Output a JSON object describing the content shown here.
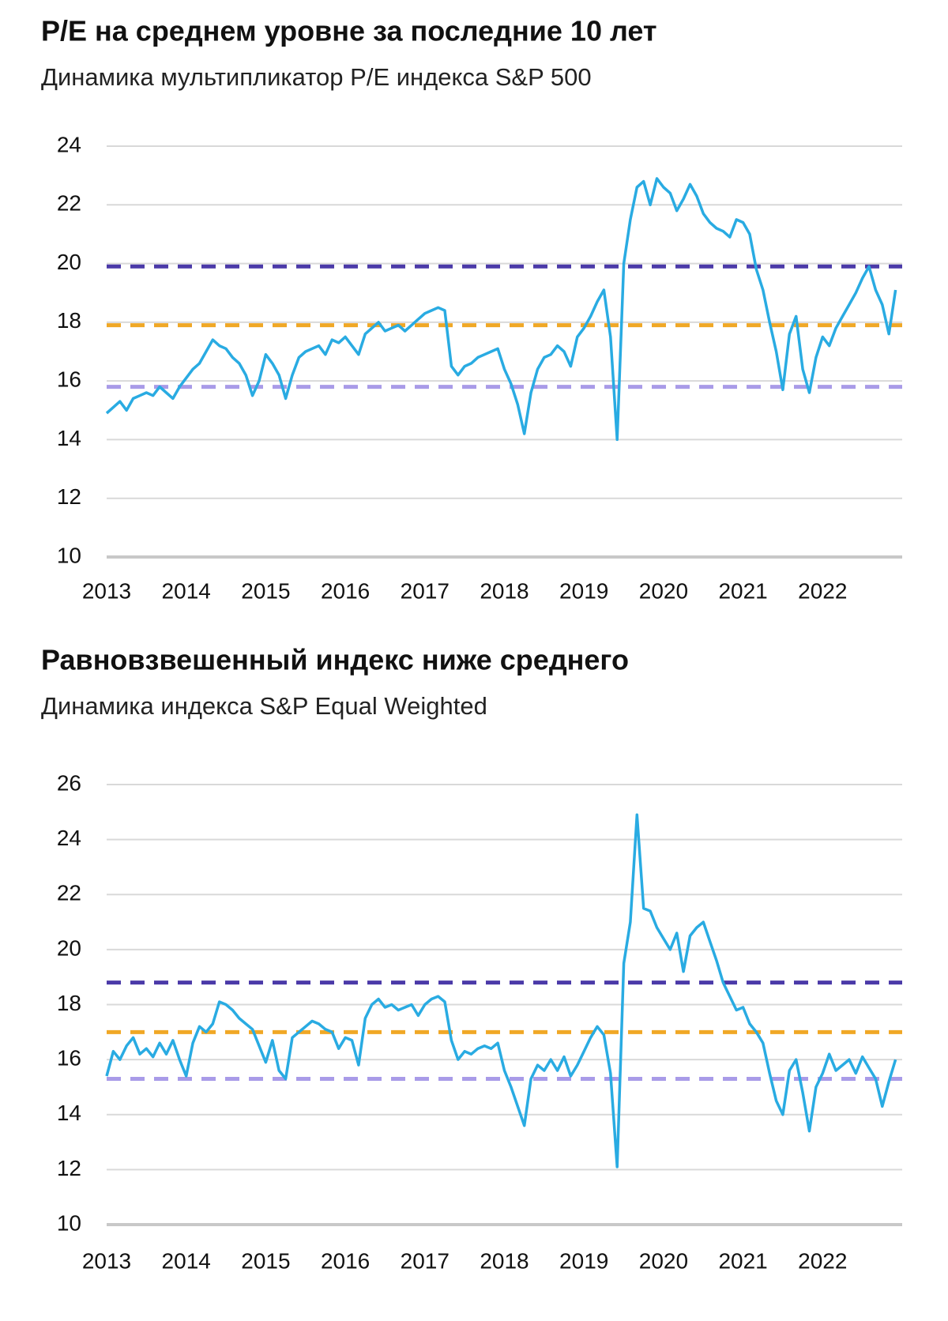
{
  "chart_data": [
    {
      "type": "line",
      "title": "P/E на среднем уровне за последние 10 лет",
      "subtitle": "Динамика мультипликатор P/E индекса S&P 500",
      "xlim": [
        2013,
        2023
      ],
      "xticks": [
        2013,
        2014,
        2015,
        2016,
        2017,
        2018,
        2019,
        2020,
        2021,
        2022
      ],
      "ylim": [
        10,
        24
      ],
      "yticks": [
        10,
        12,
        14,
        16,
        18,
        20,
        22,
        24
      ],
      "grid": true,
      "series": [
        {
          "color": "#29abe2",
          "values": [
            14.9,
            15.1,
            15.3,
            15.0,
            15.4,
            15.5,
            15.6,
            15.5,
            15.8,
            15.6,
            15.4,
            15.8,
            16.1,
            16.4,
            16.6,
            17.0,
            17.4,
            17.2,
            17.1,
            16.8,
            16.6,
            16.2,
            15.5,
            16.0,
            16.9,
            16.6,
            16.2,
            15.4,
            16.2,
            16.8,
            17.0,
            17.1,
            17.2,
            16.9,
            17.4,
            17.3,
            17.5,
            17.2,
            16.9,
            17.6,
            17.8,
            18.0,
            17.7,
            17.8,
            17.9,
            17.7,
            17.9,
            18.1,
            18.3,
            18.4,
            18.5,
            18.4,
            16.5,
            16.2,
            16.5,
            16.6,
            16.8,
            16.9,
            17.0,
            17.1,
            16.4,
            15.9,
            15.2,
            14.2,
            15.6,
            16.4,
            16.8,
            16.9,
            17.2,
            17.0,
            16.5,
            17.5,
            17.8,
            18.2,
            18.7,
            19.1,
            17.5,
            14.0,
            20.0,
            21.5,
            22.6,
            22.8,
            22.0,
            22.9,
            22.6,
            22.4,
            21.8,
            22.2,
            22.7,
            22.3,
            21.7,
            21.4,
            21.2,
            21.1,
            20.9,
            21.5,
            21.4,
            21.0,
            19.8,
            19.1,
            18.0,
            17.0,
            15.7,
            17.6,
            18.2,
            16.4,
            15.6,
            16.8,
            17.5,
            17.2,
            17.8,
            18.2,
            18.6,
            19.0,
            19.5,
            19.9,
            19.1,
            18.6,
            17.6,
            19.1
          ]
        }
      ],
      "reference_lines": [
        {
          "value": 19.9,
          "color": "#4b3aa8",
          "style": "dashed"
        },
        {
          "value": 17.9,
          "color": "#f0a826",
          "style": "dashed"
        },
        {
          "value": 15.8,
          "color": "#a99be8",
          "style": "dashed"
        }
      ]
    },
    {
      "type": "line",
      "title": "Равновзвешенный индекс ниже среднего",
      "subtitle": "Динамика индекса S&P Equal Weighted",
      "xlim": [
        2013,
        2023
      ],
      "xticks": [
        2013,
        2014,
        2015,
        2016,
        2017,
        2018,
        2019,
        2020,
        2021,
        2022
      ],
      "ylim": [
        10,
        26
      ],
      "yticks": [
        10,
        12,
        14,
        16,
        18,
        20,
        22,
        24,
        26
      ],
      "grid": true,
      "series": [
        {
          "color": "#29abe2",
          "values": [
            15.4,
            16.3,
            16.0,
            16.5,
            16.8,
            16.2,
            16.4,
            16.1,
            16.6,
            16.2,
            16.7,
            16.0,
            15.4,
            16.6,
            17.2,
            17.0,
            17.3,
            18.1,
            18.0,
            17.8,
            17.5,
            17.3,
            17.1,
            16.5,
            15.9,
            16.7,
            15.6,
            15.3,
            16.8,
            17.0,
            17.2,
            17.4,
            17.3,
            17.1,
            17.0,
            16.4,
            16.8,
            16.7,
            15.8,
            17.5,
            18.0,
            18.2,
            17.9,
            18.0,
            17.8,
            17.9,
            18.0,
            17.6,
            18.0,
            18.2,
            18.3,
            18.1,
            16.7,
            16.0,
            16.3,
            16.2,
            16.4,
            16.5,
            16.4,
            16.6,
            15.6,
            15.0,
            14.3,
            13.6,
            15.3,
            15.8,
            15.6,
            16.0,
            15.6,
            16.1,
            15.4,
            15.8,
            16.3,
            16.8,
            17.2,
            16.9,
            15.5,
            12.1,
            19.5,
            21.0,
            24.9,
            21.5,
            21.4,
            20.8,
            20.4,
            20.0,
            20.6,
            19.2,
            20.5,
            20.8,
            21.0,
            20.3,
            19.6,
            18.8,
            18.3,
            17.8,
            17.9,
            17.3,
            17.0,
            16.6,
            15.5,
            14.5,
            14.0,
            15.6,
            16.0,
            14.8,
            13.4,
            15.0,
            15.5,
            16.2,
            15.6,
            15.8,
            16.0,
            15.5,
            16.1,
            15.7,
            15.3,
            14.3,
            15.2,
            16.0
          ]
        }
      ],
      "reference_lines": [
        {
          "value": 18.8,
          "color": "#4b3aa8",
          "style": "dashed"
        },
        {
          "value": 17.0,
          "color": "#f0a826",
          "style": "dashed"
        },
        {
          "value": 15.3,
          "color": "#a99be8",
          "style": "dashed"
        }
      ]
    }
  ]
}
